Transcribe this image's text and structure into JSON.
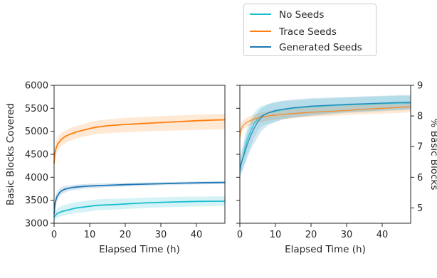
{
  "chart_data": [
    {
      "type": "line",
      "xlabel": "Elapsed Time (h)",
      "ylabel": "Basic Blocks Covered",
      "xlim": [
        0,
        48
      ],
      "ylim": [
        3000,
        6000
      ],
      "xticks": [
        "0",
        "10",
        "20",
        "30",
        "40"
      ],
      "yticks": [
        "3000",
        "3500",
        "4000",
        "4500",
        "5000",
        "5500",
        "6000"
      ],
      "grid": false,
      "series": [
        {
          "name": "No Seeds",
          "color": "#17becf",
          "x": [
            0,
            0.3,
            1,
            2,
            3,
            4,
            5,
            6,
            8,
            10,
            12,
            15,
            18,
            20,
            25,
            30,
            35,
            40,
            45,
            48
          ],
          "y": [
            3130,
            3170,
            3220,
            3250,
            3270,
            3290,
            3310,
            3330,
            3350,
            3370,
            3390,
            3400,
            3410,
            3420,
            3440,
            3455,
            3465,
            3475,
            3480,
            3480
          ],
          "lower": [
            3050,
            3080,
            3120,
            3150,
            3170,
            3190,
            3200,
            3220,
            3240,
            3260,
            3280,
            3290,
            3300,
            3310,
            3330,
            3345,
            3355,
            3365,
            3375,
            3380
          ],
          "upper": [
            3220,
            3270,
            3330,
            3370,
            3400,
            3420,
            3440,
            3460,
            3480,
            3500,
            3520,
            3530,
            3535,
            3540,
            3555,
            3565,
            3575,
            3580,
            3585,
            3585
          ]
        },
        {
          "name": "Trace Seeds",
          "color": "#ff7f0e",
          "x": [
            0,
            0.2,
            0.5,
            1,
            2,
            3,
            4,
            5,
            6,
            8,
            10,
            12,
            15,
            20,
            25,
            30,
            35,
            40,
            45,
            48
          ],
          "y": [
            4300,
            4500,
            4620,
            4720,
            4820,
            4880,
            4920,
            4950,
            4980,
            5020,
            5060,
            5090,
            5120,
            5150,
            5170,
            5190,
            5210,
            5230,
            5245,
            5250
          ],
          "lower": [
            4150,
            4350,
            4480,
            4580,
            4680,
            4740,
            4780,
            4810,
            4840,
            4880,
            4910,
            4940,
            4960,
            4980,
            5000,
            5010,
            5020,
            5030,
            5040,
            5045
          ],
          "upper": [
            4450,
            4650,
            4770,
            4870,
            4960,
            5010,
            5050,
            5080,
            5110,
            5150,
            5200,
            5230,
            5260,
            5290,
            5310,
            5330,
            5345,
            5360,
            5370,
            5375
          ]
        },
        {
          "name": "Generated Seeds",
          "color": "#1f77b4",
          "x": [
            0,
            0.3,
            0.8,
            1.5,
            2,
            3,
            4,
            5,
            6,
            8,
            10,
            15,
            20,
            25,
            30,
            35,
            40,
            45,
            48
          ],
          "y": [
            3200,
            3450,
            3580,
            3660,
            3700,
            3740,
            3760,
            3775,
            3785,
            3800,
            3810,
            3825,
            3840,
            3850,
            3860,
            3870,
            3878,
            3884,
            3888
          ],
          "lower": [
            3100,
            3350,
            3480,
            3570,
            3620,
            3670,
            3700,
            3715,
            3725,
            3745,
            3760,
            3785,
            3800,
            3815,
            3825,
            3835,
            3845,
            3852,
            3856
          ],
          "upper": [
            3300,
            3550,
            3680,
            3750,
            3780,
            3810,
            3820,
            3830,
            3840,
            3850,
            3860,
            3870,
            3880,
            3888,
            3895,
            3902,
            3908,
            3914,
            3918
          ]
        }
      ]
    },
    {
      "type": "line",
      "xlabel": "Elapsed Time (h)",
      "ylabel": "% Basic Blocks",
      "xlim": [
        0,
        48
      ],
      "ylim": [
        4.5,
        9
      ],
      "xticks": [
        "0",
        "10",
        "20",
        "30",
        "40"
      ],
      "yticks": [
        "5",
        "6",
        "7",
        "8",
        "9"
      ],
      "y_axis_position": "right",
      "grid": false,
      "series": [
        {
          "name": "No Seeds",
          "color": "#17becf",
          "x": [
            0,
            0.3,
            1,
            1.5,
            2,
            3,
            4,
            5,
            6,
            7,
            8,
            10,
            12,
            15,
            20,
            25,
            30,
            35,
            40,
            45,
            48
          ],
          "y": [
            6.3,
            6.45,
            6.7,
            7.0,
            7.2,
            7.5,
            7.75,
            7.9,
            8.0,
            8.05,
            8.1,
            8.15,
            8.2,
            8.25,
            8.3,
            8.33,
            8.36,
            8.38,
            8.4,
            8.42,
            8.42
          ],
          "lower": [
            6.0,
            6.1,
            6.3,
            6.5,
            6.7,
            7.0,
            7.3,
            7.5,
            7.65,
            7.7,
            7.75,
            7.82,
            7.9,
            7.95,
            8.0,
            8.05,
            8.1,
            8.12,
            8.15,
            8.18,
            8.2
          ],
          "upper": [
            6.6,
            6.8,
            7.1,
            7.4,
            7.6,
            7.9,
            8.1,
            8.25,
            8.32,
            8.36,
            8.4,
            8.45,
            8.48,
            8.5,
            8.55,
            8.57,
            8.6,
            8.62,
            8.64,
            8.66,
            8.66
          ]
        },
        {
          "name": "Trace Seeds",
          "color": "#ff7f0e",
          "x": [
            0,
            0.2,
            0.5,
            1,
            2,
            3,
            4,
            5,
            6,
            8,
            10,
            12,
            15,
            20,
            25,
            30,
            35,
            40,
            45,
            48
          ],
          "y": [
            7.3,
            7.5,
            7.6,
            7.7,
            7.8,
            7.85,
            7.9,
            7.93,
            7.96,
            8.0,
            8.03,
            8.05,
            8.08,
            8.12,
            8.15,
            8.18,
            8.22,
            8.25,
            8.28,
            8.3
          ],
          "lower": [
            7.1,
            7.3,
            7.45,
            7.55,
            7.65,
            7.7,
            7.75,
            7.78,
            7.8,
            7.85,
            7.88,
            7.9,
            7.93,
            7.97,
            8.0,
            8.03,
            8.06,
            8.08,
            8.1,
            8.12
          ],
          "upper": [
            7.5,
            7.7,
            7.8,
            7.88,
            7.95,
            8.0,
            8.05,
            8.08,
            8.12,
            8.16,
            8.2,
            8.23,
            8.26,
            8.3,
            8.33,
            8.36,
            8.38,
            8.4,
            8.42,
            8.44
          ]
        },
        {
          "name": "Generated Seeds",
          "color": "#1f77b4",
          "x": [
            0,
            0.3,
            0.8,
            1.5,
            2,
            3,
            4,
            5,
            6,
            7,
            8,
            10,
            12,
            15,
            20,
            25,
            30,
            35,
            40,
            45,
            48
          ],
          "y": [
            6.2,
            6.4,
            6.6,
            6.85,
            7.05,
            7.35,
            7.6,
            7.8,
            7.95,
            8.05,
            8.1,
            8.18,
            8.22,
            8.27,
            8.32,
            8.35,
            8.38,
            8.4,
            8.42,
            8.44,
            8.45
          ],
          "lower": [
            5.95,
            6.1,
            6.25,
            6.45,
            6.6,
            6.9,
            7.1,
            7.3,
            7.5,
            7.6,
            7.7,
            7.8,
            7.88,
            7.95,
            8.02,
            8.08,
            8.12,
            8.15,
            8.18,
            8.2,
            8.22
          ],
          "upper": [
            6.45,
            6.7,
            6.95,
            7.25,
            7.45,
            7.75,
            7.98,
            8.12,
            8.25,
            8.32,
            8.38,
            8.45,
            8.5,
            8.54,
            8.58,
            8.6,
            8.62,
            8.64,
            8.66,
            8.68,
            8.68
          ]
        }
      ]
    }
  ],
  "legend": {
    "placement": "top-right",
    "items": [
      {
        "label": "No Seeds",
        "color": "#17becf"
      },
      {
        "label": "Trace Seeds",
        "color": "#ff7f0e"
      },
      {
        "label": "Generated Seeds",
        "color": "#1f77b4"
      }
    ]
  }
}
